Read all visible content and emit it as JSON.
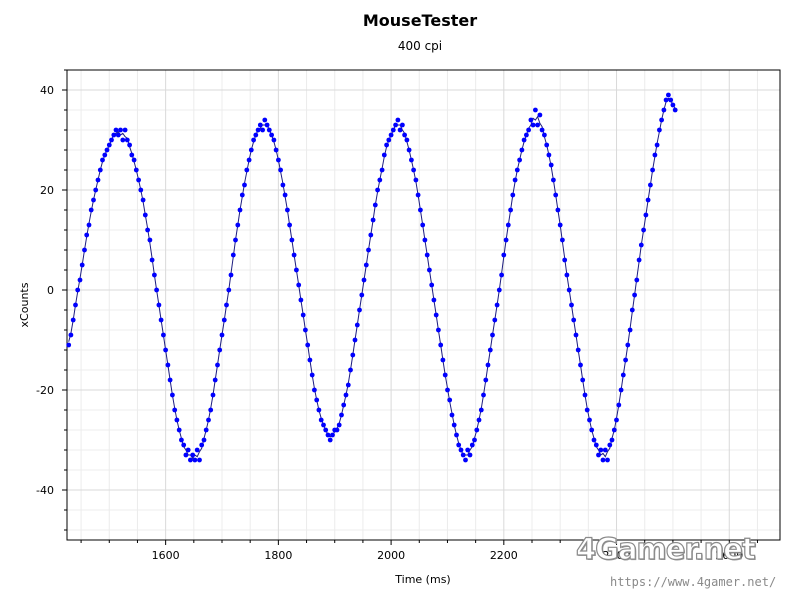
{
  "chart_data": {
    "type": "scatter",
    "title": "MouseTester",
    "subtitle": "400 cpi",
    "xlabel": "Time (ms)",
    "ylabel": "xCounts",
    "xlim": [
      1425,
      2690
    ],
    "ylim": [
      -50,
      44
    ],
    "xticks": [
      1600,
      1800,
      2000,
      2200,
      2400,
      2600
    ],
    "yticks": [
      40,
      20,
      0,
      -20,
      -40
    ],
    "grid": true,
    "legend": "none",
    "series": [
      {
        "marker_color": "#0000ff",
        "line_color": "#1e1e80",
        "note": "sampled counts (dots) with smoothed trend line",
        "points": [
          [
            1428,
            -11
          ],
          [
            1432,
            -9
          ],
          [
            1436,
            -6
          ],
          [
            1440,
            -3
          ],
          [
            1444,
            0
          ],
          [
            1448,
            2
          ],
          [
            1452,
            5
          ],
          [
            1456,
            8
          ],
          [
            1460,
            11
          ],
          [
            1464,
            13
          ],
          [
            1468,
            16
          ],
          [
            1472,
            18
          ],
          [
            1476,
            20
          ],
          [
            1480,
            22
          ],
          [
            1484,
            24
          ],
          [
            1488,
            26
          ],
          [
            1492,
            27
          ],
          [
            1496,
            28
          ],
          [
            1500,
            29
          ],
          [
            1504,
            30
          ],
          [
            1508,
            31
          ],
          [
            1512,
            32
          ],
          [
            1516,
            31
          ],
          [
            1520,
            32
          ],
          [
            1524,
            30
          ],
          [
            1528,
            32
          ],
          [
            1532,
            30
          ],
          [
            1536,
            29
          ],
          [
            1540,
            27
          ],
          [
            1544,
            26
          ],
          [
            1548,
            24
          ],
          [
            1552,
            22
          ],
          [
            1556,
            20
          ],
          [
            1560,
            18
          ],
          [
            1564,
            15
          ],
          [
            1568,
            12
          ],
          [
            1572,
            10
          ],
          [
            1576,
            6
          ],
          [
            1580,
            3
          ],
          [
            1584,
            0
          ],
          [
            1588,
            -3
          ],
          [
            1592,
            -6
          ],
          [
            1596,
            -9
          ],
          [
            1600,
            -12
          ],
          [
            1604,
            -15
          ],
          [
            1608,
            -18
          ],
          [
            1612,
            -21
          ],
          [
            1616,
            -24
          ],
          [
            1620,
            -26
          ],
          [
            1624,
            -28
          ],
          [
            1628,
            -30
          ],
          [
            1632,
            -31
          ],
          [
            1636,
            -33
          ],
          [
            1640,
            -32
          ],
          [
            1644,
            -34
          ],
          [
            1648,
            -33
          ],
          [
            1652,
            -34
          ],
          [
            1656,
            -32
          ],
          [
            1660,
            -34
          ],
          [
            1664,
            -31
          ],
          [
            1668,
            -30
          ],
          [
            1672,
            -28
          ],
          [
            1676,
            -26
          ],
          [
            1680,
            -24
          ],
          [
            1684,
            -21
          ],
          [
            1688,
            -18
          ],
          [
            1692,
            -15
          ],
          [
            1696,
            -12
          ],
          [
            1700,
            -9
          ],
          [
            1704,
            -6
          ],
          [
            1708,
            -3
          ],
          [
            1712,
            0
          ],
          [
            1716,
            3
          ],
          [
            1720,
            7
          ],
          [
            1724,
            10
          ],
          [
            1728,
            13
          ],
          [
            1732,
            16
          ],
          [
            1736,
            19
          ],
          [
            1740,
            21
          ],
          [
            1744,
            24
          ],
          [
            1748,
            26
          ],
          [
            1752,
            28
          ],
          [
            1756,
            30
          ],
          [
            1760,
            31
          ],
          [
            1764,
            32
          ],
          [
            1768,
            33
          ],
          [
            1772,
            32
          ],
          [
            1776,
            34
          ],
          [
            1780,
            33
          ],
          [
            1784,
            32
          ],
          [
            1788,
            31
          ],
          [
            1792,
            30
          ],
          [
            1796,
            28
          ],
          [
            1800,
            26
          ],
          [
            1804,
            24
          ],
          [
            1808,
            21
          ],
          [
            1812,
            19
          ],
          [
            1816,
            16
          ],
          [
            1820,
            13
          ],
          [
            1824,
            10
          ],
          [
            1828,
            7
          ],
          [
            1832,
            4
          ],
          [
            1836,
            1
          ],
          [
            1840,
            -2
          ],
          [
            1844,
            -5
          ],
          [
            1848,
            -8
          ],
          [
            1852,
            -11
          ],
          [
            1856,
            -14
          ],
          [
            1860,
            -17
          ],
          [
            1864,
            -20
          ],
          [
            1868,
            -22
          ],
          [
            1872,
            -24
          ],
          [
            1876,
            -26
          ],
          [
            1880,
            -27
          ],
          [
            1884,
            -28
          ],
          [
            1888,
            -29
          ],
          [
            1892,
            -30
          ],
          [
            1896,
            -29
          ],
          [
            1900,
            -28
          ],
          [
            1904,
            -28
          ],
          [
            1908,
            -27
          ],
          [
            1912,
            -25
          ],
          [
            1916,
            -23
          ],
          [
            1920,
            -21
          ],
          [
            1924,
            -19
          ],
          [
            1928,
            -16
          ],
          [
            1932,
            -13
          ],
          [
            1936,
            -10
          ],
          [
            1940,
            -7
          ],
          [
            1944,
            -4
          ],
          [
            1948,
            -1
          ],
          [
            1952,
            2
          ],
          [
            1956,
            5
          ],
          [
            1960,
            8
          ],
          [
            1964,
            11
          ],
          [
            1968,
            14
          ],
          [
            1972,
            17
          ],
          [
            1976,
            20
          ],
          [
            1980,
            22
          ],
          [
            1984,
            24
          ],
          [
            1988,
            27
          ],
          [
            1992,
            29
          ],
          [
            1996,
            30
          ],
          [
            2000,
            31
          ],
          [
            2004,
            32
          ],
          [
            2008,
            33
          ],
          [
            2012,
            34
          ],
          [
            2016,
            32
          ],
          [
            2020,
            33
          ],
          [
            2024,
            31
          ],
          [
            2028,
            30
          ],
          [
            2032,
            28
          ],
          [
            2036,
            26
          ],
          [
            2040,
            24
          ],
          [
            2044,
            22
          ],
          [
            2048,
            19
          ],
          [
            2052,
            16
          ],
          [
            2056,
            13
          ],
          [
            2060,
            10
          ],
          [
            2064,
            7
          ],
          [
            2068,
            4
          ],
          [
            2072,
            1
          ],
          [
            2076,
            -2
          ],
          [
            2080,
            -5
          ],
          [
            2084,
            -8
          ],
          [
            2088,
            -11
          ],
          [
            2092,
            -14
          ],
          [
            2096,
            -17
          ],
          [
            2100,
            -20
          ],
          [
            2104,
            -22
          ],
          [
            2108,
            -25
          ],
          [
            2112,
            -27
          ],
          [
            2116,
            -29
          ],
          [
            2120,
            -31
          ],
          [
            2124,
            -32
          ],
          [
            2128,
            -33
          ],
          [
            2132,
            -34
          ],
          [
            2136,
            -32
          ],
          [
            2140,
            -33
          ],
          [
            2144,
            -31
          ],
          [
            2148,
            -30
          ],
          [
            2152,
            -28
          ],
          [
            2156,
            -26
          ],
          [
            2160,
            -24
          ],
          [
            2164,
            -21
          ],
          [
            2168,
            -18
          ],
          [
            2172,
            -15
          ],
          [
            2176,
            -12
          ],
          [
            2180,
            -9
          ],
          [
            2184,
            -6
          ],
          [
            2188,
            -3
          ],
          [
            2192,
            0
          ],
          [
            2196,
            3
          ],
          [
            2200,
            7
          ],
          [
            2204,
            10
          ],
          [
            2208,
            13
          ],
          [
            2212,
            16
          ],
          [
            2216,
            19
          ],
          [
            2220,
            22
          ],
          [
            2224,
            24
          ],
          [
            2228,
            26
          ],
          [
            2232,
            28
          ],
          [
            2236,
            30
          ],
          [
            2240,
            31
          ],
          [
            2244,
            32
          ],
          [
            2248,
            34
          ],
          [
            2252,
            33
          ],
          [
            2256,
            36
          ],
          [
            2260,
            33
          ],
          [
            2264,
            35
          ],
          [
            2268,
            32
          ],
          [
            2272,
            31
          ],
          [
            2276,
            29
          ],
          [
            2280,
            27
          ],
          [
            2284,
            25
          ],
          [
            2288,
            22
          ],
          [
            2292,
            19
          ],
          [
            2296,
            16
          ],
          [
            2300,
            13
          ],
          [
            2304,
            10
          ],
          [
            2308,
            6
          ],
          [
            2312,
            3
          ],
          [
            2316,
            0
          ],
          [
            2320,
            -3
          ],
          [
            2324,
            -6
          ],
          [
            2328,
            -9
          ],
          [
            2332,
            -12
          ],
          [
            2336,
            -15
          ],
          [
            2340,
            -18
          ],
          [
            2344,
            -21
          ],
          [
            2348,
            -24
          ],
          [
            2352,
            -26
          ],
          [
            2356,
            -28
          ],
          [
            2360,
            -30
          ],
          [
            2364,
            -31
          ],
          [
            2368,
            -33
          ],
          [
            2372,
            -32
          ],
          [
            2376,
            -34
          ],
          [
            2380,
            -32
          ],
          [
            2384,
            -34
          ],
          [
            2388,
            -31
          ],
          [
            2392,
            -30
          ],
          [
            2396,
            -28
          ],
          [
            2400,
            -26
          ],
          [
            2404,
            -23
          ],
          [
            2408,
            -20
          ],
          [
            2412,
            -17
          ],
          [
            2416,
            -14
          ],
          [
            2420,
            -11
          ],
          [
            2424,
            -8
          ],
          [
            2428,
            -4
          ],
          [
            2432,
            -1
          ],
          [
            2436,
            2
          ],
          [
            2440,
            6
          ],
          [
            2444,
            9
          ],
          [
            2448,
            12
          ],
          [
            2452,
            15
          ],
          [
            2456,
            18
          ],
          [
            2460,
            21
          ],
          [
            2464,
            24
          ],
          [
            2468,
            27
          ],
          [
            2472,
            29
          ],
          [
            2476,
            32
          ],
          [
            2480,
            34
          ],
          [
            2484,
            36
          ],
          [
            2488,
            38
          ],
          [
            2492,
            39
          ],
          [
            2496,
            38
          ],
          [
            2500,
            37
          ],
          [
            2504,
            36
          ]
        ]
      }
    ]
  },
  "watermark": {
    "logo": "4Gamer.net",
    "url": "https://www.4gamer.net/"
  }
}
